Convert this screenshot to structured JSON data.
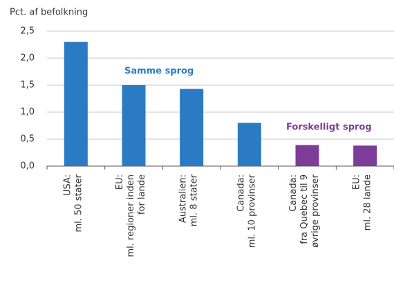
{
  "chart_data": {
    "type": "bar",
    "y_label": "Pct. af befolkning",
    "categories": [
      [
        "USA:",
        "ml. 50 stater"
      ],
      [
        "EU:",
        "ml. regioner inden",
        "for lande"
      ],
      [
        "Australien:",
        "ml. 8 stater"
      ],
      [
        "Canada:",
        "ml. 10 provinser"
      ],
      [
        "Canada:",
        "fra Quebec til 9",
        "øvrige provinser"
      ],
      [
        "EU:",
        "ml. 28 lande"
      ]
    ],
    "values": [
      2.3,
      1.5,
      1.43,
      0.8,
      0.39,
      0.38
    ],
    "colors": [
      "#2b7bc4",
      "#2b7bc4",
      "#2b7bc4",
      "#2b7bc4",
      "#7d3c98",
      "#7d3c98"
    ],
    "annotations": [
      {
        "text": "Samme sprog",
        "color": "#2b7bc4"
      },
      {
        "text": "Forskelligt sprog",
        "color": "#7d3c98"
      }
    ],
    "ylim": [
      0,
      2.5
    ],
    "yticks": [
      {
        "value": 0,
        "label": "0,0"
      },
      {
        "value": 0.5,
        "label": "0,5"
      },
      {
        "value": 1,
        "label": "1,0"
      },
      {
        "value": 1.5,
        "label": "1,5"
      },
      {
        "value": 2,
        "label": "2,0"
      },
      {
        "value": 2.5,
        "label": "2,5"
      }
    ],
    "grid": true
  }
}
